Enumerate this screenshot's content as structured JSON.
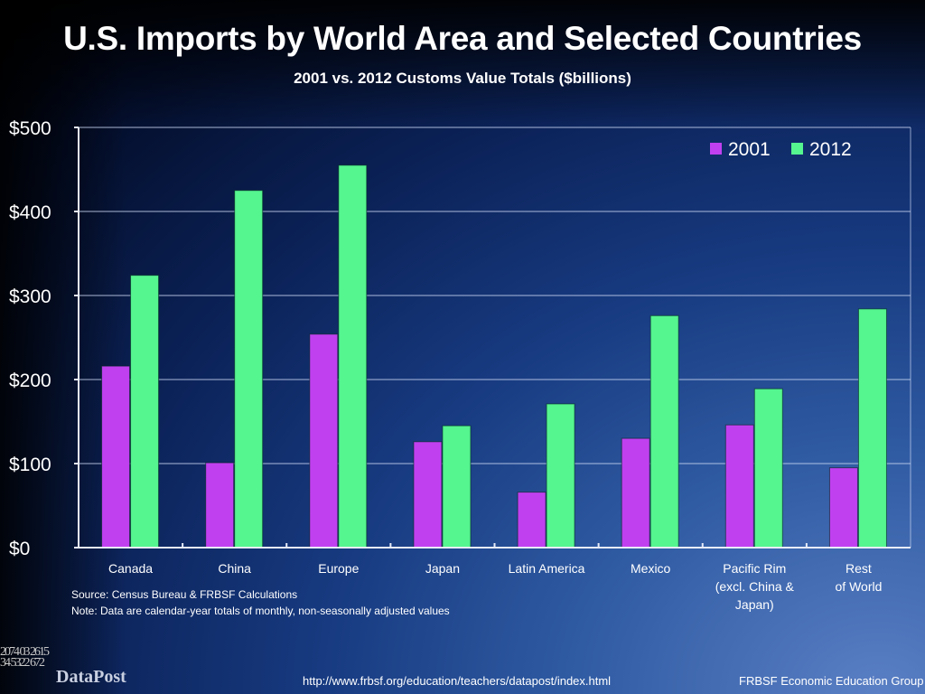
{
  "chart_data": {
    "type": "bar",
    "title": "U.S. Imports by World Area and Selected Countries",
    "subtitle": "2001 vs. 2012 Customs Value Totals ($billions)",
    "xlabel": "",
    "ylabel": "",
    "categories": [
      [
        "Canada"
      ],
      [
        "China"
      ],
      [
        "Europe"
      ],
      [
        "Japan"
      ],
      [
        "Latin America"
      ],
      [
        "Mexico"
      ],
      [
        "Pacific Rim",
        "(excl. China &",
        "Japan)"
      ],
      [
        "Rest",
        "of World"
      ]
    ],
    "series": [
      {
        "name": "2001",
        "color": "#c040f0",
        "values": [
          216,
          101,
          254,
          126,
          66,
          130,
          146,
          95
        ]
      },
      {
        "name": "2012",
        "color": "#55f590",
        "values": [
          324,
          425,
          455,
          145,
          171,
          276,
          189,
          284
        ]
      }
    ],
    "ylim": [
      0,
      500
    ],
    "yticks": [
      0,
      100,
      200,
      300,
      400,
      500
    ],
    "ytick_labels": [
      "$0",
      "$100",
      "$200",
      "$300",
      "$400",
      "$500"
    ],
    "grid": true,
    "legend_position": "top-right"
  },
  "footer": {
    "source": "Source: Census Bureau & FRBSF Calculations",
    "note": "Note: Data are calendar-year totals of monthly, non-seasonally adjusted values",
    "logo_text": "DataPost",
    "logo_digits": "2074 03 2615 34 5322 672",
    "url": "http://www.frbsf.org/education/teachers/datapost/index.html",
    "organization": "FRBSF Economic Education Group"
  }
}
